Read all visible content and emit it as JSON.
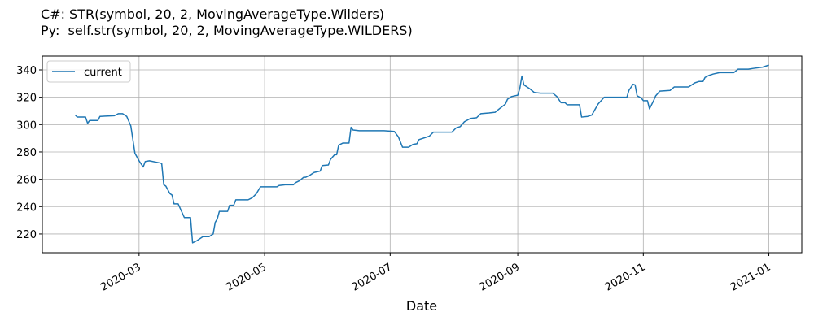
{
  "chart_data": {
    "type": "line",
    "title_lines": [
      "C#: STR(symbol, 20, 2, MovingAverageType.Wilders)",
      "Py:  self.str(symbol, 20, 2, MovingAverageType.WILDERS)"
    ],
    "x_label": "Date",
    "legend": "upper left",
    "grid": true,
    "xlim": [
      "2020-01-14",
      "2021-01-17"
    ],
    "xticks": [
      {
        "value": "2020-03-01",
        "label": "2020-03"
      },
      {
        "value": "2020-05-01",
        "label": "2020-05"
      },
      {
        "value": "2020-07-01",
        "label": "2020-07"
      },
      {
        "value": "2020-09-01",
        "label": "2020-09"
      },
      {
        "value": "2020-11-01",
        "label": "2020-11"
      },
      {
        "value": "2021-01-01",
        "label": "2021-01"
      }
    ],
    "ylim": [
      206.3,
      350.1
    ],
    "yticks": [
      220,
      240,
      260,
      280,
      300,
      320,
      340
    ],
    "series": [
      {
        "name": "current",
        "color": "#1f77b4",
        "x": [
          "2020-01-30",
          "2020-01-31",
          "2020-02-04",
          "2020-02-05",
          "2020-02-06",
          "2020-02-10",
          "2020-02-11",
          "2020-02-18",
          "2020-02-20",
          "2020-02-22",
          "2020-02-24",
          "2020-02-26",
          "2020-02-28",
          "2020-03-01",
          "2020-03-03",
          "2020-03-04",
          "2020-03-06",
          "2020-03-11",
          "2020-03-12",
          "2020-03-13",
          "2020-03-14",
          "2020-03-16",
          "2020-03-17",
          "2020-03-18",
          "2020-03-20",
          "2020-03-23",
          "2020-03-26",
          "2020-03-27",
          "2020-03-29",
          "2020-03-31",
          "2020-04-01",
          "2020-04-04",
          "2020-04-06",
          "2020-04-07",
          "2020-04-08",
          "2020-04-09",
          "2020-04-13",
          "2020-04-14",
          "2020-04-16",
          "2020-04-17",
          "2020-04-23",
          "2020-04-25",
          "2020-04-27",
          "2020-04-29",
          "2020-05-07",
          "2020-05-08",
          "2020-05-11",
          "2020-05-15",
          "2020-05-16",
          "2020-05-18",
          "2020-05-20",
          "2020-05-21",
          "2020-05-23",
          "2020-05-25",
          "2020-05-28",
          "2020-05-29",
          "2020-06-01",
          "2020-06-02",
          "2020-06-04",
          "2020-06-05",
          "2020-06-06",
          "2020-06-08",
          "2020-06-11",
          "2020-06-12",
          "2020-06-13",
          "2020-06-16",
          "2020-06-28",
          "2020-07-03",
          "2020-07-05",
          "2020-07-07",
          "2020-07-10",
          "2020-07-12",
          "2020-07-14",
          "2020-07-15",
          "2020-07-20",
          "2020-07-22",
          "2020-07-31",
          "2020-08-02",
          "2020-08-04",
          "2020-08-06",
          "2020-08-09",
          "2020-08-12",
          "2020-08-14",
          "2020-08-18",
          "2020-08-21",
          "2020-08-23",
          "2020-08-26",
          "2020-08-27",
          "2020-08-29",
          "2020-09-01",
          "2020-09-02",
          "2020-09-03",
          "2020-09-04",
          "2020-09-07",
          "2020-09-09",
          "2020-09-12",
          "2020-09-18",
          "2020-09-20",
          "2020-09-22",
          "2020-09-24",
          "2020-09-25",
          "2020-10-01",
          "2020-10-02",
          "2020-10-05",
          "2020-10-07",
          "2020-10-10",
          "2020-10-13",
          "2020-10-24",
          "2020-10-25",
          "2020-10-27",
          "2020-10-28",
          "2020-10-29",
          "2020-10-31",
          "2020-11-01",
          "2020-11-03",
          "2020-11-04",
          "2020-11-06",
          "2020-11-07",
          "2020-11-09",
          "2020-11-14",
          "2020-11-16",
          "2020-11-23",
          "2020-11-26",
          "2020-11-28",
          "2020-11-30",
          "2020-12-01",
          "2020-12-03",
          "2020-12-05",
          "2020-12-08",
          "2020-12-15",
          "2020-12-17",
          "2020-12-22",
          "2020-12-24",
          "2020-12-29",
          "2021-01-01"
        ],
        "values": [
          307,
          305.5,
          305.5,
          301,
          303,
          303,
          306,
          306.5,
          308,
          308,
          306,
          299,
          279,
          273.5,
          269,
          273,
          273.5,
          272,
          271.5,
          256,
          255,
          249.5,
          248.5,
          242,
          242,
          232,
          232,
          213.5,
          215,
          217,
          218,
          218,
          220,
          228.5,
          231,
          236.5,
          236.5,
          241,
          241,
          245,
          245,
          246.5,
          249.5,
          254.5,
          254.5,
          255.5,
          256,
          256,
          257.5,
          259,
          261.5,
          261.5,
          263,
          265,
          266,
          270,
          270.5,
          274.5,
          278,
          278,
          285,
          286.5,
          286.5,
          298,
          296,
          295.5,
          295.5,
          295,
          291,
          283.5,
          283.5,
          285.5,
          286,
          289,
          291.5,
          294.5,
          294.5,
          297.5,
          298.5,
          302,
          304.5,
          305,
          308,
          308.5,
          309,
          311.5,
          315,
          318.5,
          320.5,
          321.5,
          326.5,
          335.5,
          329,
          326,
          323.5,
          323,
          323,
          320.5,
          316,
          316,
          314.5,
          314.5,
          305.5,
          306,
          307,
          315,
          320,
          320,
          325,
          329.5,
          329,
          321,
          319.5,
          317.5,
          317.5,
          311.5,
          317.5,
          321,
          324.5,
          325,
          327.5,
          327.5,
          330.5,
          331.5,
          331.5,
          334.5,
          336,
          337,
          338,
          338,
          340.5,
          340.5,
          341,
          342,
          343.5
        ]
      }
    ]
  }
}
